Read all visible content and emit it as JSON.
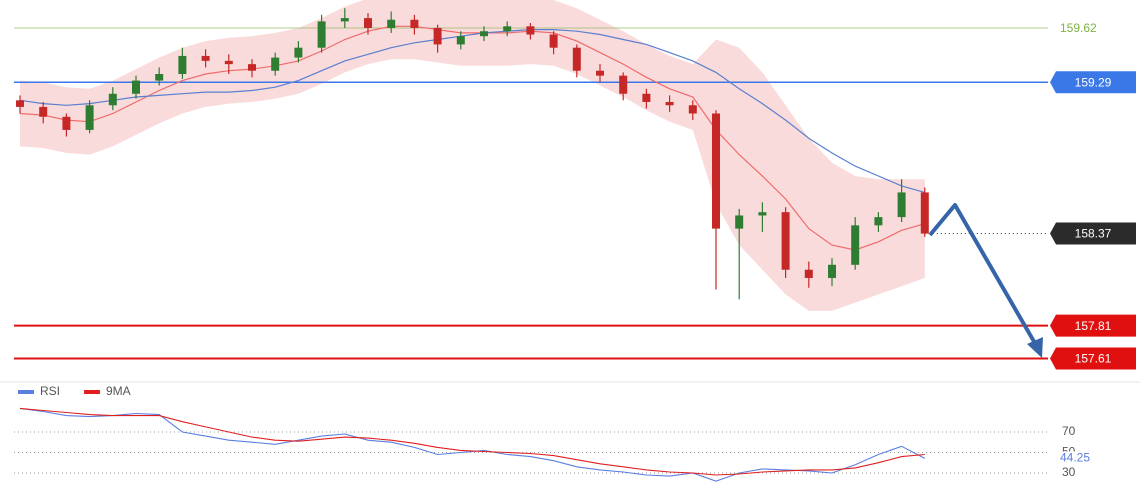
{
  "chart_data": [
    {
      "type": "candlestick",
      "ylim": [
        157.51,
        159.79
      ],
      "up_color": "#2e7d32",
      "down_color": "#c62828",
      "open": [
        159.18,
        159.14,
        159.08,
        159.0,
        159.15,
        159.22,
        159.3,
        159.34,
        159.45,
        159.42,
        159.4,
        159.36,
        159.44,
        159.5,
        159.66,
        159.68,
        159.62,
        159.67,
        159.62,
        159.52,
        159.57,
        159.6,
        159.63,
        159.58,
        159.5,
        159.36,
        159.33,
        159.22,
        159.17,
        159.15,
        159.1,
        158.4,
        158.48,
        158.5,
        158.15,
        158.1,
        158.18,
        158.42,
        158.47,
        158.62
      ],
      "high": [
        159.21,
        159.17,
        159.1,
        159.18,
        159.26,
        159.33,
        159.38,
        159.5,
        159.49,
        159.46,
        159.43,
        159.47,
        159.54,
        159.7,
        159.74,
        159.71,
        159.72,
        159.7,
        159.64,
        159.6,
        159.63,
        159.66,
        159.65,
        159.6,
        159.52,
        159.4,
        159.35,
        159.25,
        159.21,
        159.18,
        159.12,
        158.52,
        158.56,
        158.53,
        158.2,
        158.22,
        158.47,
        158.5,
        158.7,
        158.65
      ],
      "low": [
        159.1,
        159.04,
        158.96,
        158.98,
        159.12,
        159.19,
        159.27,
        159.31,
        159.38,
        159.34,
        159.32,
        159.33,
        159.41,
        159.47,
        159.62,
        159.58,
        159.59,
        159.58,
        159.47,
        159.49,
        159.54,
        159.57,
        159.55,
        159.46,
        159.32,
        159.29,
        159.18,
        159.13,
        159.11,
        159.06,
        158.03,
        157.97,
        158.38,
        158.1,
        158.04,
        158.05,
        158.15,
        158.38,
        158.44,
        158.35
      ],
      "close": [
        159.14,
        159.08,
        159.0,
        159.15,
        159.22,
        159.3,
        159.34,
        159.45,
        159.42,
        159.4,
        159.36,
        159.44,
        159.5,
        159.66,
        159.68,
        159.62,
        159.67,
        159.62,
        159.52,
        159.57,
        159.6,
        159.63,
        159.58,
        159.5,
        159.36,
        159.33,
        159.22,
        159.17,
        159.15,
        159.1,
        158.4,
        158.48,
        158.5,
        158.15,
        158.1,
        158.18,
        158.42,
        158.47,
        158.62,
        158.37
      ],
      "band": {
        "color": "#f8c8c8",
        "upper": [
          159.3,
          159.29,
          159.26,
          159.25,
          159.3,
          159.37,
          159.44,
          159.5,
          159.54,
          159.56,
          159.57,
          159.59,
          159.62,
          159.68,
          159.75,
          159.8,
          159.83,
          159.83,
          159.81,
          159.79,
          159.79,
          159.79,
          159.8,
          159.79,
          159.74,
          159.67,
          159.6,
          159.52,
          159.45,
          159.4,
          159.55,
          159.5,
          159.35,
          159.15,
          158.95,
          158.8,
          158.72,
          158.7,
          158.7,
          158.7
        ],
        "lower": [
          158.9,
          158.89,
          158.86,
          158.85,
          158.9,
          158.97,
          159.04,
          159.1,
          159.14,
          159.16,
          159.17,
          159.19,
          159.22,
          159.28,
          159.35,
          159.4,
          159.43,
          159.43,
          159.41,
          159.39,
          159.39,
          159.39,
          159.4,
          159.39,
          159.34,
          159.27,
          159.2,
          159.12,
          159.05,
          159.0,
          158.55,
          158.3,
          158.15,
          158.0,
          157.9,
          157.9,
          157.95,
          158.0,
          158.05,
          158.1
        ]
      },
      "lines": [
        {
          "color": "#ef6b6b",
          "values": [
            159.1,
            159.09,
            159.06,
            159.05,
            159.1,
            159.17,
            159.24,
            159.3,
            159.34,
            159.36,
            159.37,
            159.39,
            159.42,
            159.48,
            159.55,
            159.6,
            159.63,
            159.63,
            159.61,
            159.59,
            159.59,
            159.59,
            159.6,
            159.59,
            159.54,
            159.47,
            159.4,
            159.32,
            159.25,
            159.2,
            159.0,
            158.85,
            158.72,
            158.58,
            158.4,
            158.3,
            158.27,
            158.32,
            158.39,
            158.43
          ]
        },
        {
          "color": "#5a7fd0",
          "values": [
            159.18,
            159.16,
            159.15,
            159.16,
            159.18,
            159.2,
            159.21,
            159.22,
            159.23,
            159.23,
            159.24,
            159.26,
            159.3,
            159.36,
            159.42,
            159.46,
            159.5,
            159.53,
            159.55,
            159.57,
            159.59,
            159.6,
            159.61,
            159.61,
            159.6,
            159.58,
            159.55,
            159.52,
            159.47,
            159.42,
            159.35,
            159.25,
            159.16,
            159.06,
            158.95,
            158.86,
            158.78,
            158.72,
            158.66,
            158.62
          ]
        }
      ],
      "levels": [
        {
          "value": 159.62,
          "color": "#7cb342",
          "line": "solid",
          "box": false
        },
        {
          "value": 159.29,
          "color": "#3b78e7",
          "line": "solid",
          "box": true
        },
        {
          "value": 158.37,
          "color": "#2b2b2b",
          "line": "dotted",
          "box": true
        },
        {
          "value": 157.81,
          "color": "#e01010",
          "line": "solid",
          "box": true
        },
        {
          "value": 157.61,
          "color": "#e01010",
          "line": "solid",
          "box": true
        }
      ]
    },
    {
      "type": "line",
      "ylim": [
        13.4,
        101.2
      ],
      "yticks": [
        70,
        50,
        30
      ],
      "grid": true,
      "series": [
        {
          "name": "RSI",
          "color": "#5b7fe0",
          "values": [
            93,
            90,
            86,
            85,
            86,
            88,
            87,
            70,
            66,
            62,
            60,
            58,
            62,
            66,
            68,
            62,
            60,
            55,
            48,
            50,
            52,
            48,
            46,
            42,
            36,
            33,
            31,
            28,
            27,
            30,
            22,
            30,
            34,
            33,
            32,
            30,
            38,
            48,
            56,
            44.25
          ]
        },
        {
          "name": "9MA",
          "color": "#e02020",
          "values": [
            93,
            91,
            89,
            87,
            86,
            86,
            86,
            80,
            75,
            70,
            65,
            62,
            61,
            63,
            65,
            64,
            62,
            59,
            55,
            52,
            51,
            50,
            49,
            47,
            43,
            39,
            36,
            33,
            31,
            30,
            28,
            29,
            31,
            32,
            33,
            33,
            35,
            40,
            46,
            48
          ]
        }
      ]
    }
  ]
}
